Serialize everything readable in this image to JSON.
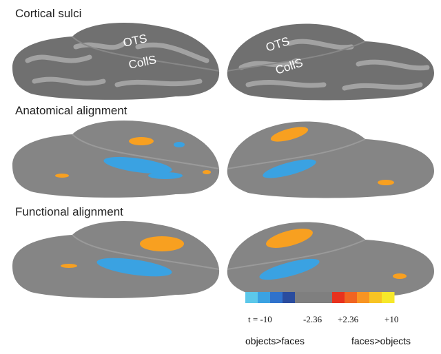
{
  "panels": [
    {
      "title": "Cortical sulci",
      "labels": [
        "OTS",
        "CollS",
        "OTS",
        "CollS"
      ]
    },
    {
      "title": "Anatomical alignment"
    },
    {
      "title": "Functional alignment"
    }
  ],
  "colorbar": {
    "colors": [
      "#5cc8ea",
      "#3aa2e2",
      "#2f72cc",
      "#2a4c9e",
      "#7f7f7f",
      "#7f7f7f",
      "#7f7f7f",
      "#e8321e",
      "#f06422",
      "#f89422",
      "#f8c424",
      "#f6e82a"
    ],
    "tick_labels": [
      "t = -10",
      "-2.36",
      "+2.36",
      "+10"
    ],
    "left_label": "objects>faces",
    "right_label": "faces>objects"
  }
}
